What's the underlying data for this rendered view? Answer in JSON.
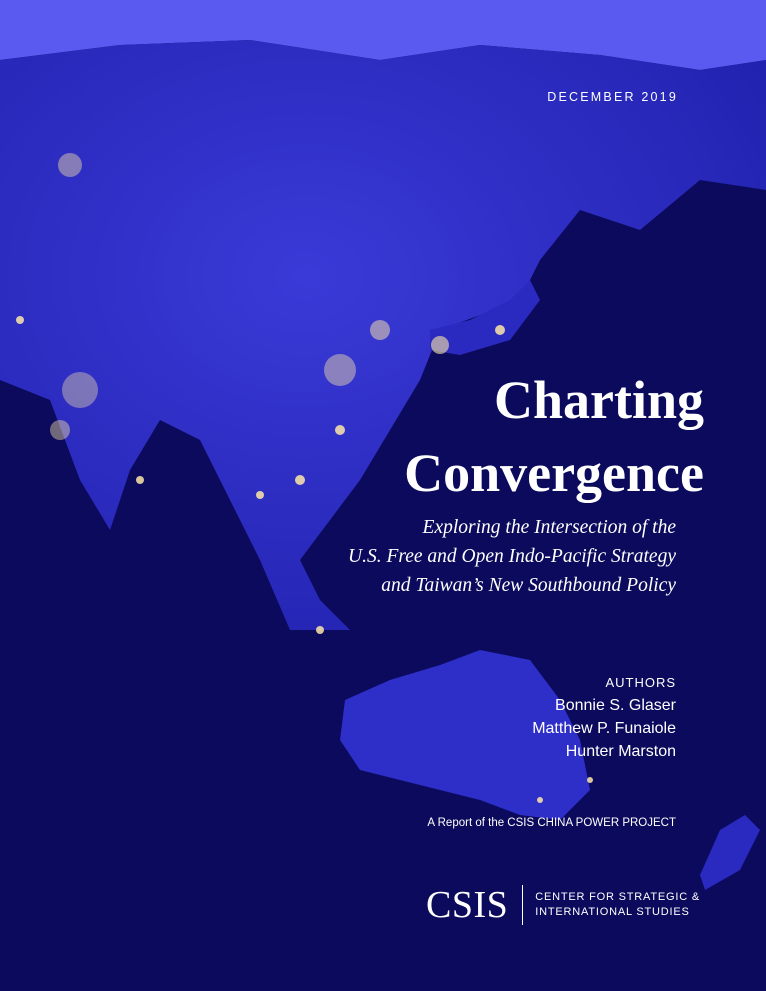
{
  "cover": {
    "date": "DECEMBER 2019",
    "title_line1": "Charting",
    "title_line2": "Convergence",
    "subtitle_lines": [
      "Exploring the Intersection of the",
      "U.S. Free and Open Indo-Pacific Strategy",
      "and Taiwan’s New Southbound Policy"
    ],
    "authors_label": "AUTHORS",
    "authors": [
      "Bonnie S. Glaser",
      "Matthew P. Funaiole",
      "Hunter Marston"
    ],
    "report_line": "A Report of the CSIS CHINA POWER PROJECT",
    "logo_text": "CSIS",
    "org_name_lines": [
      "CENTER FOR STRATEGIC &",
      "INTERNATIONAL STUDIES"
    ]
  },
  "colors": {
    "ocean": "#0b0a5c",
    "land": "#2f2fcf",
    "arctic": "#5a5af0",
    "city_lights": "#ffe9a8"
  }
}
